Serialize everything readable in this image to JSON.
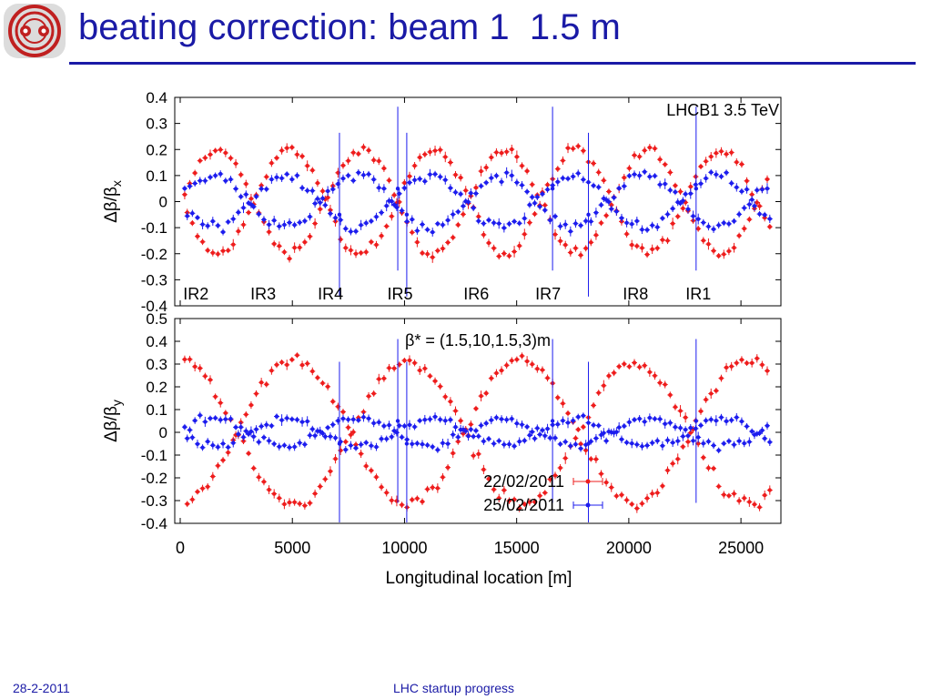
{
  "slide": {
    "title": "beating correction: beam 1  1.5 m",
    "footer_date": "28-2-2011",
    "footer_text": "LHC startup progress",
    "accent_color": "#1a1aa6",
    "logo_icon": "lhc-logo-icon"
  },
  "chart_data": {
    "type": "scatter",
    "xlabel": "Longitudinal location [m]",
    "xlim": [
      0,
      26700
    ],
    "xticks": [
      "0",
      "5000",
      "10000",
      "15000",
      "20000",
      "25000"
    ],
    "xtick_values": [
      0,
      5000,
      10000,
      15000,
      20000,
      25000
    ],
    "series_colors": [
      "#ee1c1c",
      "#1c1cee"
    ],
    "legend": [
      {
        "label": "22/02/2011",
        "color": "#ee1c1c"
      },
      {
        "label": "25/02/2011",
        "color": "#1c1cee"
      }
    ],
    "legend_position": "bottom-right of lower panel",
    "panels": [
      {
        "name": "x",
        "ylabel_main": "Δβ/β",
        "ylabel_sub": "x",
        "ylim": [
          -0.4,
          0.4
        ],
        "yticks": [
          "0.4",
          "0.3",
          "0.2",
          "0.1",
          "0",
          "-0.1",
          "-0.2",
          "-0.3",
          "-0.4"
        ],
        "ytick_values": [
          0.4,
          0.3,
          0.2,
          0.1,
          0,
          -0.1,
          -0.2,
          -0.3,
          -0.4
        ],
        "annotation": "LHCB1 3.5 TeV",
        "ir_labels": [
          {
            "text": "IR2",
            "x": 700
          },
          {
            "text": "IR3",
            "x": 3700
          },
          {
            "text": "IR4",
            "x": 6700
          },
          {
            "text": "IR5",
            "x": 9800
          },
          {
            "text": "IR6",
            "x": 13200
          },
          {
            "text": "IR7",
            "x": 16400
          },
          {
            "text": "IR8",
            "x": 20300
          },
          {
            "text": "IR1",
            "x": 23100
          }
        ],
        "series": [
          {
            "name": "22/02/2011",
            "amplitude": 0.2,
            "wavenumber": 0.0063,
            "noise": 0.03
          },
          {
            "name": "25/02/2011",
            "amplitude": 0.1,
            "wavenumber": 0.0063,
            "noise": 0.03
          }
        ]
      },
      {
        "name": "y",
        "ylabel_main": "Δβ/β",
        "ylabel_sub": "y",
        "ylim": [
          -0.4,
          0.5
        ],
        "yticks": [
          "0.5",
          "0.4",
          "0.3",
          "0.2",
          "0.1",
          "0",
          "-0.1",
          "-0.2",
          "-0.3",
          "-0.4"
        ],
        "ytick_values": [
          0.5,
          0.4,
          0.3,
          0.2,
          0.1,
          0,
          -0.1,
          -0.2,
          -0.3,
          -0.4
        ],
        "annotation": "β* = (1.5,10,1.5,3)m",
        "series": [
          {
            "name": "22/02/2011",
            "amplitude": 0.35,
            "wavenumber": 0.0062,
            "noise": 0.04
          },
          {
            "name": "25/02/2011",
            "amplitude": 0.06,
            "wavenumber": 0.0062,
            "noise": 0.03
          }
        ]
      }
    ]
  }
}
